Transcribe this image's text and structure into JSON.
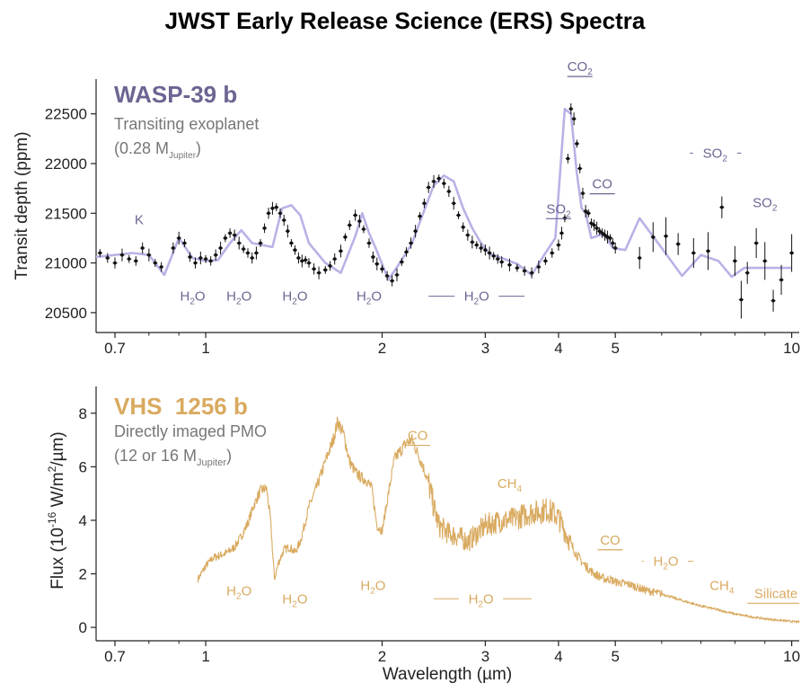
{
  "title": "JWST Early Release Science (ERS) Spectra",
  "colors": {
    "wasp": "#6b6592",
    "wasp_line": "#b9b2e6",
    "vhs": "#d9aa60",
    "desc": "#777777",
    "data": "#111111"
  },
  "chart_data": [
    {
      "type": "scatter",
      "panel": "top",
      "name": "WASP-39 b",
      "description_line1": "Transiting exoplanet",
      "mass_prefix": "(0.28 M",
      "mass_sub": "Jupiter",
      "mass_suffix": ")",
      "ylabel": "Transit depth (ppm)",
      "xscale": "log",
      "xlim": [
        0.65,
        10.3
      ],
      "ylim": [
        20300,
        22850
      ],
      "xticks": [
        0.7,
        1,
        2,
        3,
        4,
        5,
        10
      ],
      "xtick_labels": [
        "0.7",
        "1",
        "2",
        "3",
        "4",
        "5",
        "10"
      ],
      "yticks": [
        20500,
        21000,
        21500,
        22000,
        22500
      ],
      "ytick_labels": [
        "20500",
        "21000",
        "21500",
        "22000",
        "22500"
      ],
      "model_x": [
        0.65,
        0.75,
        0.8,
        0.85,
        0.9,
        0.95,
        1.0,
        1.05,
        1.1,
        1.15,
        1.2,
        1.3,
        1.35,
        1.4,
        1.45,
        1.5,
        1.6,
        1.7,
        1.8,
        1.85,
        1.9,
        1.95,
        2.05,
        2.15,
        2.25,
        2.35,
        2.45,
        2.55,
        2.65,
        2.75,
        2.85,
        2.95,
        3.05,
        3.2,
        3.4,
        3.6,
        3.8,
        3.95,
        4.1,
        4.2,
        4.3,
        4.38,
        4.45,
        4.55,
        4.7,
        4.8,
        4.95,
        5.2,
        5.5,
        6.0,
        6.5,
        7.0,
        7.5,
        7.9,
        8.3,
        8.7,
        9.2,
        9.6,
        10.0
      ],
      "model_y": [
        21060,
        21100,
        21080,
        20880,
        21250,
        21050,
        21020,
        21030,
        21200,
        21330,
        21200,
        21160,
        21550,
        21580,
        21480,
        21200,
        21000,
        20900,
        21270,
        21500,
        21300,
        21150,
        20830,
        21010,
        21200,
        21500,
        21780,
        21880,
        21820,
        21550,
        21350,
        21200,
        21090,
        21050,
        20990,
        20880,
        21100,
        21250,
        22550,
        22500,
        21900,
        21550,
        21500,
        21250,
        21280,
        21280,
        21150,
        21130,
        21450,
        21150,
        20870,
        21080,
        21020,
        20860,
        20950,
        20950,
        20950,
        20950,
        20950
      ],
      "points_x": [
        0.66,
        0.68,
        0.7,
        0.72,
        0.74,
        0.76,
        0.78,
        0.8,
        0.82,
        0.84,
        0.88,
        0.9,
        0.92,
        0.94,
        0.96,
        0.98,
        1.0,
        1.02,
        1.04,
        1.06,
        1.08,
        1.1,
        1.12,
        1.14,
        1.16,
        1.18,
        1.2,
        1.22,
        1.24,
        1.26,
        1.28,
        1.3,
        1.32,
        1.34,
        1.36,
        1.38,
        1.4,
        1.42,
        1.44,
        1.46,
        1.48,
        1.5,
        1.53,
        1.56,
        1.6,
        1.63,
        1.66,
        1.7,
        1.73,
        1.76,
        1.8,
        1.83,
        1.86,
        1.9,
        1.93,
        1.96,
        2.0,
        2.04,
        2.08,
        2.12,
        2.16,
        2.2,
        2.24,
        2.28,
        2.32,
        2.36,
        2.4,
        2.45,
        2.5,
        2.55,
        2.6,
        2.65,
        2.7,
        2.75,
        2.8,
        2.85,
        2.9,
        2.95,
        3.0,
        3.05,
        3.1,
        3.15,
        3.2,
        3.3,
        3.4,
        3.5,
        3.6,
        3.7,
        3.8,
        3.9,
        4.0,
        4.05,
        4.1,
        4.15,
        4.2,
        4.25,
        4.3,
        4.35,
        4.4,
        4.45,
        4.5,
        4.55,
        4.6,
        4.65,
        4.7,
        4.75,
        4.8,
        4.85,
        4.9,
        4.95,
        5.0,
        5.5,
        5.8,
        6.1,
        6.4,
        6.8,
        7.2,
        7.6,
        8.0,
        8.2,
        8.4,
        8.7,
        9.0,
        9.3,
        9.6,
        10.0
      ],
      "points_y": [
        21100,
        21050,
        21000,
        21080,
        21040,
        21020,
        21150,
        21080,
        21000,
        20960,
        21150,
        21250,
        21200,
        21060,
        21000,
        21050,
        21040,
        21020,
        21080,
        21150,
        21250,
        21300,
        21280,
        21200,
        21140,
        21100,
        21050,
        21100,
        21200,
        21350,
        21500,
        21550,
        21560,
        21500,
        21430,
        21320,
        21200,
        21130,
        21050,
        21020,
        21030,
        21000,
        20940,
        20900,
        20930,
        20970,
        21040,
        21120,
        21260,
        21380,
        21480,
        21420,
        21340,
        21200,
        21060,
        20990,
        20940,
        20870,
        20820,
        20880,
        21010,
        21110,
        21200,
        21320,
        21470,
        21600,
        21760,
        21820,
        21850,
        21800,
        21720,
        21600,
        21480,
        21360,
        21280,
        21210,
        21180,
        21150,
        21130,
        21100,
        21070,
        21040,
        21010,
        20980,
        20950,
        20920,
        20900,
        20960,
        21020,
        21100,
        21180,
        21300,
        21450,
        22050,
        22550,
        22450,
        22200,
        21950,
        21700,
        21520,
        21500,
        21400,
        21380,
        21350,
        21320,
        21300,
        21280,
        21260,
        21250,
        21200,
        21150,
        21050,
        21260,
        21270,
        21190,
        21100,
        21120,
        21560,
        21020,
        20630,
        20900,
        21200,
        21020,
        20620,
        20830,
        21100
      ]
    },
    {
      "type": "line",
      "panel": "bottom",
      "name": "VHS  1256 b",
      "description_line1": "Directly imaged PMO",
      "mass_prefix": "(12 or 16 M",
      "mass_sub": "Jupiter",
      "mass_suffix": ")",
      "ylabel_prefix": "Flux (10",
      "ylabel_exp": "-16",
      "ylabel_mid": " W/m",
      "ylabel_exp2": "2",
      "ylabel_suffix": "/µm)",
      "xlabel": "Wavelength (µm)",
      "xscale": "log",
      "xlim": [
        0.65,
        10.3
      ],
      "ylim": [
        -0.5,
        9.0
      ],
      "xticks": [
        0.7,
        1,
        2,
        3,
        4,
        5,
        10
      ],
      "xtick_labels": [
        "0.7",
        "1",
        "2",
        "3",
        "4",
        "5",
        "10"
      ],
      "yticks": [
        0,
        2,
        4,
        6,
        8
      ],
      "ytick_labels": [
        "0",
        "2",
        "4",
        "6",
        "8"
      ],
      "x": [
        0.97,
        1.0,
        1.03,
        1.06,
        1.09,
        1.12,
        1.15,
        1.18,
        1.21,
        1.24,
        1.27,
        1.29,
        1.31,
        1.33,
        1.36,
        1.39,
        1.42,
        1.45,
        1.5,
        1.55,
        1.6,
        1.65,
        1.68,
        1.72,
        1.76,
        1.8,
        1.84,
        1.88,
        1.92,
        1.96,
        2.0,
        2.05,
        2.1,
        2.15,
        2.2,
        2.25,
        2.3,
        2.35,
        2.4,
        2.45,
        2.5,
        2.6,
        2.7,
        2.8,
        2.9,
        3.0,
        3.1,
        3.2,
        3.3,
        3.4,
        3.5,
        3.6,
        3.7,
        3.8,
        3.9,
        4.0,
        4.1,
        4.2,
        4.3,
        4.4,
        4.5,
        4.6,
        4.7,
        4.8,
        4.9,
        5.0,
        5.3,
        5.6,
        6.0,
        6.5,
        7.0,
        7.5,
        8.0,
        8.5,
        9.0,
        9.5,
        10.0,
        10.3
      ],
      "y": [
        1.8,
        2.3,
        2.6,
        2.7,
        2.8,
        3.0,
        3.4,
        3.9,
        4.6,
        5.1,
        5.2,
        4.0,
        1.8,
        2.4,
        2.9,
        3.0,
        2.8,
        3.2,
        4.5,
        5.3,
        6.2,
        7.0,
        7.7,
        7.2,
        6.2,
        5.8,
        5.6,
        5.5,
        5.2,
        3.8,
        3.6,
        5.0,
        6.3,
        6.6,
        6.9,
        7.0,
        6.5,
        6.0,
        5.4,
        4.5,
        3.8,
        3.5,
        3.4,
        3.2,
        3.5,
        3.8,
        3.9,
        4.0,
        4.0,
        4.1,
        4.2,
        4.3,
        4.3,
        4.4,
        4.3,
        4.1,
        3.6,
        3.1,
        2.7,
        2.4,
        2.2,
        2.0,
        1.9,
        1.8,
        1.8,
        1.7,
        1.6,
        1.4,
        1.25,
        1.0,
        0.8,
        0.65,
        0.5,
        0.4,
        0.32,
        0.27,
        0.22,
        0.2
      ]
    }
  ],
  "top_annotations": [
    {
      "id": "k",
      "label": "K",
      "sub": "",
      "x": 0.77,
      "y_val": 21390,
      "bar": false
    },
    {
      "id": "h2o-1",
      "label": "H",
      "sub": "2",
      "tail": "O",
      "x": 0.95,
      "y_val": 20620,
      "bar": false
    },
    {
      "id": "h2o-2",
      "label": "H",
      "sub": "2",
      "tail": "O",
      "x": 1.14,
      "y_val": 20620,
      "bar": true,
      "x0": 1.08,
      "x1": 1.22
    },
    {
      "id": "h2o-3",
      "label": "H",
      "sub": "2",
      "tail": "O",
      "x": 1.42,
      "y_val": 20620,
      "bar": true,
      "x0": 1.33,
      "x1": 1.53
    },
    {
      "id": "h2o-4",
      "label": "H",
      "sub": "2",
      "tail": "O",
      "x": 1.9,
      "y_val": 20620,
      "bar": true,
      "x0": 1.78,
      "x1": 2.04
    },
    {
      "id": "h2o-5",
      "label": "H",
      "sub": "2",
      "tail": "O",
      "x": 2.9,
      "y_val": 20620,
      "bar": true,
      "x0": 2.4,
      "x1": 3.5
    },
    {
      "id": "so2-1",
      "label": "SO",
      "sub": "2",
      "tail": "",
      "x": 4.0,
      "y_val": 21500,
      "bar": false,
      "under": true
    },
    {
      "id": "co2",
      "label": "CO",
      "sub": "2",
      "tail": "",
      "x": 4.35,
      "y_val": 22930,
      "bar": false,
      "under": true
    },
    {
      "id": "co-1",
      "label": "CO",
      "sub": "",
      "tail": "",
      "x": 4.75,
      "y_val": 21750,
      "bar": false,
      "under": true
    },
    {
      "id": "so2-2",
      "label": "SO",
      "sub": "2",
      "tail": "",
      "x": 7.4,
      "y_val": 22060,
      "bar": true,
      "x0": 6.7,
      "x1": 8.2
    },
    {
      "id": "so2-3",
      "label": "SO",
      "sub": "2",
      "tail": "",
      "x": 9.0,
      "y_val": 21560,
      "bar": true,
      "x0": 8.4,
      "x1": 9.8
    }
  ],
  "bottom_annotations": [
    {
      "id": "h2o-b1",
      "label": "H",
      "sub": "2",
      "tail": "O",
      "x": 1.14,
      "y_val": 1.2,
      "bar": true,
      "x0": 1.07,
      "x1": 1.21
    },
    {
      "id": "h2o-b2",
      "label": "H",
      "sub": "2",
      "tail": "O",
      "x": 1.42,
      "y_val": 0.9,
      "bar": true,
      "x0": 1.34,
      "x1": 1.52
    },
    {
      "id": "h2o-b3",
      "label": "H",
      "sub": "2",
      "tail": "O",
      "x": 1.93,
      "y_val": 1.4,
      "bar": true,
      "x0": 1.82,
      "x1": 2.07
    },
    {
      "id": "h2o-b4",
      "label": "H",
      "sub": "2",
      "tail": "O",
      "x": 2.95,
      "y_val": 0.9,
      "bar": true,
      "x0": 2.45,
      "x1": 3.6
    },
    {
      "id": "co-b1",
      "label": "CO",
      "sub": "",
      "tail": "",
      "x": 2.3,
      "y_val": 7.0,
      "bar": false,
      "under": true
    },
    {
      "id": "ch4-b1",
      "label": "CH",
      "sub": "4",
      "tail": "",
      "x": 3.3,
      "y_val": 5.2,
      "bar": true,
      "x0": 3.05,
      "x1": 3.6
    },
    {
      "id": "co-b2",
      "label": "CO",
      "sub": "",
      "tail": "",
      "x": 4.9,
      "y_val": 3.1,
      "bar": false,
      "under": true
    },
    {
      "id": "h2o-b5",
      "label": "H",
      "sub": "2",
      "tail": "O",
      "x": 6.1,
      "y_val": 2.3,
      "bar": true,
      "x0": 5.55,
      "x1": 6.8
    },
    {
      "id": "ch4-b2",
      "label": "CH",
      "sub": "4",
      "tail": "",
      "x": 7.6,
      "y_val": 1.4,
      "bar": true,
      "x0": 7.1,
      "x1": 8.2
    },
    {
      "id": "silicate",
      "label": "Silicate",
      "sub": "",
      "tail": "",
      "x": 9.4,
      "y_val": 1.1,
      "bar": false,
      "under": true,
      "x0": 8.4,
      "x1": 10.3
    }
  ]
}
